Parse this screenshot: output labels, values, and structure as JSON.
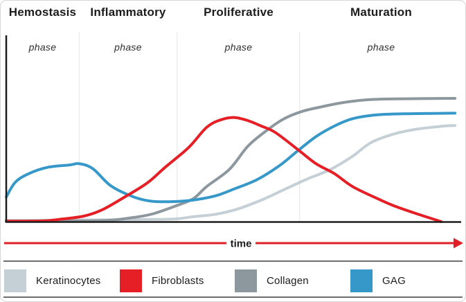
{
  "phases": [
    {
      "title": "Hemostasis",
      "label": "phase"
    },
    {
      "title": "Inflammatory",
      "label": "phase"
    },
    {
      "title": "Proliferative",
      "label": "phase"
    },
    {
      "title": "Maturation",
      "label": "phase"
    }
  ],
  "time_axis": {
    "label": "time",
    "color": "#e21f26"
  },
  "legend": [
    {
      "label": "Keratinocytes",
      "color": "#c5cfd6"
    },
    {
      "label": "Fibroblasts",
      "color": "#e61e25"
    },
    {
      "label": "Collagen",
      "color": "#8d979e"
    },
    {
      "label": "GAG",
      "color": "#3598c9"
    }
  ],
  "colors": {
    "axis": "#1c1c1c",
    "phase_divider": "#ececec",
    "separator": "#6e6e6e"
  },
  "chart_data": {
    "type": "line",
    "title": "",
    "xlabel": "time",
    "ylabel": "",
    "x_range": [
      0,
      100
    ],
    "y_range": [
      0,
      1
    ],
    "grid": false,
    "legend_position": "bottom",
    "phases": [
      {
        "name": "Hemostasis phase",
        "start": 0,
        "end": 16
      },
      {
        "name": "Inflammatory phase",
        "start": 16,
        "end": 37.5
      },
      {
        "name": "Proliferative phase",
        "start": 37.5,
        "end": 64.4
      },
      {
        "name": "Maturation phase",
        "start": 64.4,
        "end": 100
      }
    ],
    "phase_boundaries": [
      16,
      37.5,
      64.4
    ],
    "series": [
      {
        "name": "Keratinocytes",
        "color": "#c5cfd6",
        "points": [
          [
            0,
            0.01
          ],
          [
            29,
            0.017
          ],
          [
            37,
            0.022
          ],
          [
            41,
            0.04
          ],
          [
            46,
            0.06
          ],
          [
            51,
            0.105
          ],
          [
            56,
            0.175
          ],
          [
            61,
            0.26
          ],
          [
            66,
            0.345
          ],
          [
            71,
            0.42
          ],
          [
            76,
            0.53
          ],
          [
            80,
            0.64
          ],
          [
            85,
            0.71
          ],
          [
            90,
            0.75
          ],
          [
            96,
            0.775
          ],
          [
            98.5,
            0.78
          ]
        ]
      },
      {
        "name": "Collagen",
        "color": "#8d979e",
        "points": [
          [
            0,
            0.003
          ],
          [
            17,
            0.006
          ],
          [
            23,
            0.012
          ],
          [
            28,
            0.034
          ],
          [
            32,
            0.062
          ],
          [
            37,
            0.125
          ],
          [
            41,
            0.185
          ],
          [
            44,
            0.285
          ],
          [
            49,
            0.425
          ],
          [
            53,
            0.61
          ],
          [
            57,
            0.735
          ],
          [
            61,
            0.835
          ],
          [
            65,
            0.895
          ],
          [
            69,
            0.93
          ],
          [
            73,
            0.96
          ],
          [
            78,
            0.985
          ],
          [
            84,
            0.995
          ],
          [
            98.5,
            1.0
          ]
        ]
      },
      {
        "name": "GAG",
        "color": "#3598c9",
        "points": [
          [
            0,
            0.2
          ],
          [
            2,
            0.32
          ],
          [
            5,
            0.39
          ],
          [
            9,
            0.44
          ],
          [
            14,
            0.46
          ],
          [
            16,
            0.47
          ],
          [
            19,
            0.43
          ],
          [
            23,
            0.29
          ],
          [
            28,
            0.2
          ],
          [
            32,
            0.165
          ],
          [
            37,
            0.163
          ],
          [
            41,
            0.175
          ],
          [
            46,
            0.21
          ],
          [
            50,
            0.265
          ],
          [
            55,
            0.34
          ],
          [
            60,
            0.455
          ],
          [
            64,
            0.575
          ],
          [
            68,
            0.69
          ],
          [
            72,
            0.775
          ],
          [
            76,
            0.835
          ],
          [
            81,
            0.865
          ],
          [
            87,
            0.875
          ],
          [
            98.5,
            0.88
          ]
        ]
      },
      {
        "name": "Fibroblasts",
        "color": "#e61e25",
        "points": [
          [
            0,
            0.004
          ],
          [
            8,
            0.006
          ],
          [
            12,
            0.02
          ],
          [
            17,
            0.045
          ],
          [
            21,
            0.095
          ],
          [
            26,
            0.2
          ],
          [
            31,
            0.315
          ],
          [
            35,
            0.445
          ],
          [
            40,
            0.6
          ],
          [
            44,
            0.765
          ],
          [
            47,
            0.825
          ],
          [
            50,
            0.845
          ],
          [
            53,
            0.82
          ],
          [
            56,
            0.775
          ],
          [
            59,
            0.725
          ],
          [
            64,
            0.585
          ],
          [
            68,
            0.47
          ],
          [
            72,
            0.39
          ],
          [
            76,
            0.285
          ],
          [
            81,
            0.195
          ],
          [
            85,
            0.13
          ],
          [
            90,
            0.065
          ],
          [
            95.5,
            0.0
          ]
        ]
      }
    ]
  }
}
